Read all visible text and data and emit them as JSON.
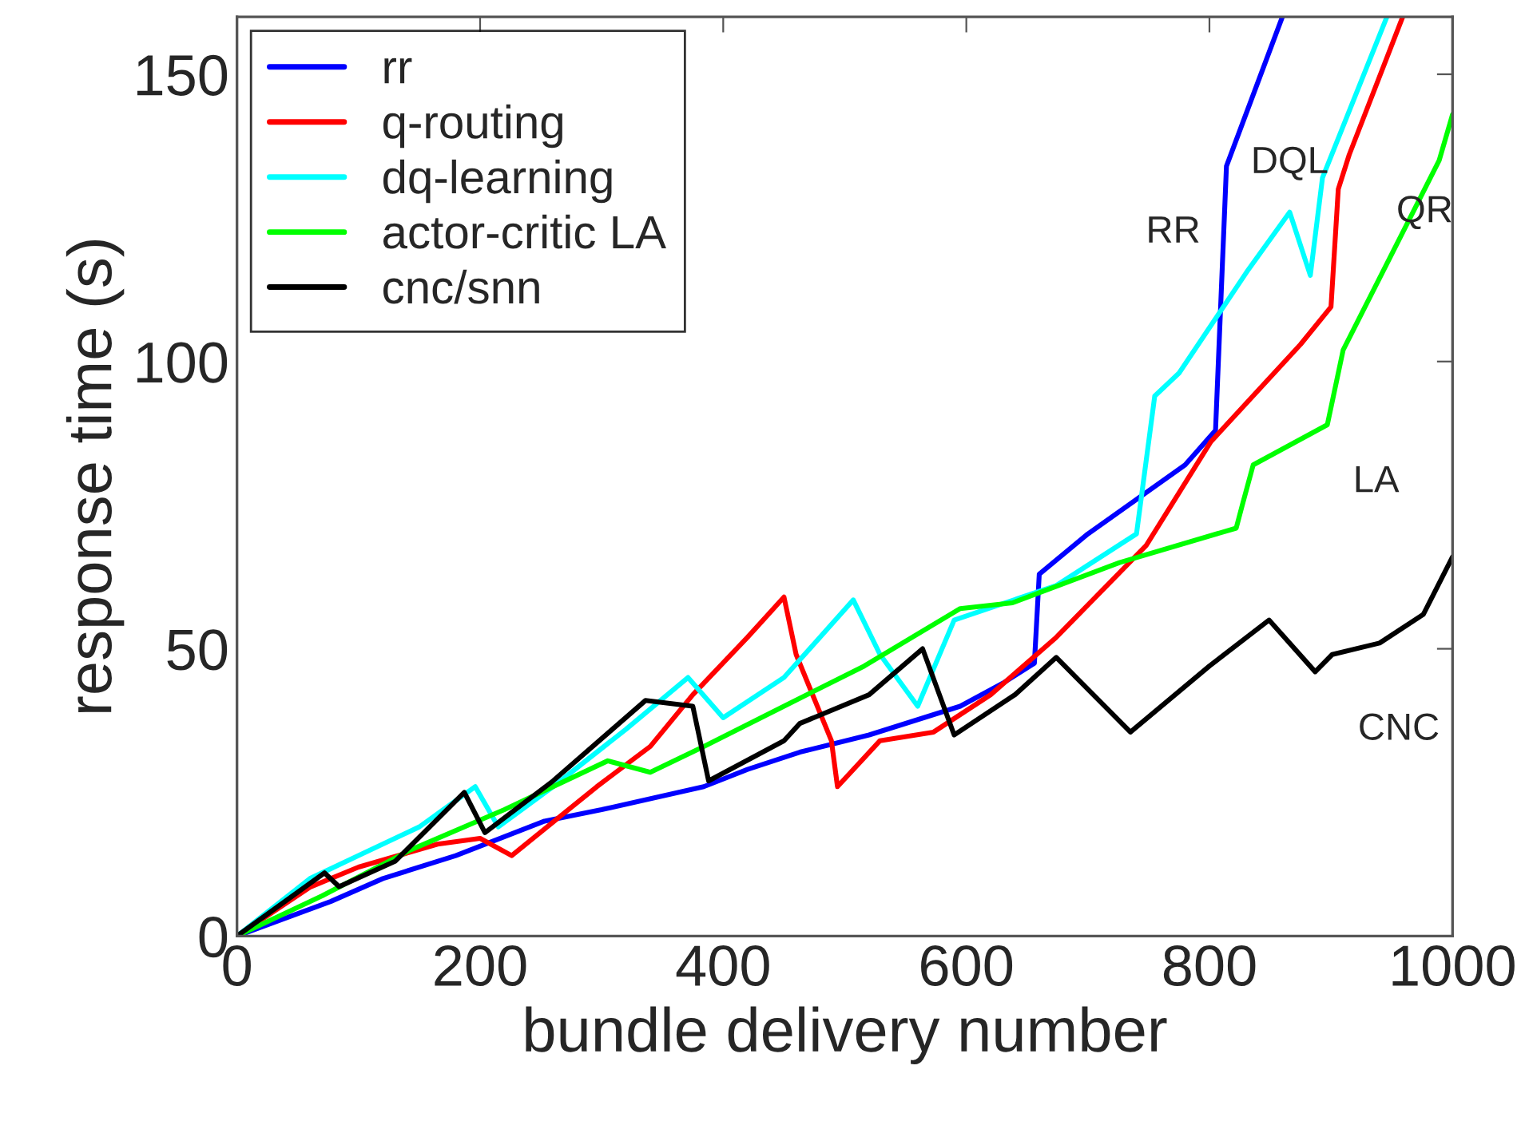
{
  "chart_data": {
    "type": "line",
    "xlabel": "bundle delivery number",
    "ylabel": "response time (s)",
    "xlim": [
      0,
      1000
    ],
    "ylim": [
      0,
      160
    ],
    "xticks": [
      0,
      200,
      400,
      600,
      800,
      1000
    ],
    "yticks": [
      0,
      50,
      100,
      150
    ],
    "grid": false,
    "legend": "top left",
    "line_style": "solid",
    "marker": "none",
    "series": [
      {
        "name": "rr",
        "color": "#0000ff",
        "x": [
          0,
          77,
          120,
          180,
          253,
          300,
          384,
          420,
          463,
          520,
          595,
          630,
          656,
          660,
          700,
          740,
          780,
          805,
          814,
          860
        ],
        "values": [
          0,
          6,
          10,
          14,
          20,
          22,
          26,
          29,
          32,
          35,
          40,
          44,
          47.5,
          63,
          70,
          76,
          82,
          88,
          134,
          160
        ]
      },
      {
        "name": "q-routing",
        "color": "#ff0000",
        "x": [
          0,
          60,
          100,
          165,
          200,
          226,
          296,
          340,
          375,
          420,
          450,
          460,
          489,
          494,
          529,
          573,
          620,
          674,
          748,
          801,
          875,
          900,
          906,
          915,
          959
        ],
        "values": [
          0,
          8.5,
          12,
          16,
          17,
          14,
          26,
          33,
          42,
          52,
          59,
          49,
          34,
          26,
          34,
          35.5,
          42,
          52,
          68,
          86,
          103,
          109.5,
          130,
          136,
          160
        ]
      },
      {
        "name": "dq-learning",
        "color": "#00ffff",
        "x": [
          0,
          60,
          100,
          150,
          196,
          215,
          260,
          320,
          371,
          400,
          450,
          507,
          529,
          560,
          590,
          674,
          740,
          755,
          775,
          832,
          866,
          883,
          893,
          946
        ],
        "values": [
          0,
          10,
          14,
          19,
          26,
          19,
          26,
          36,
          45,
          38,
          45,
          58.5,
          49,
          40,
          55,
          61,
          70,
          94,
          98,
          116,
          126,
          115,
          132,
          160
        ]
      },
      {
        "name": "actor-critic LA",
        "color": "#00ff00",
        "x": [
          0,
          70,
          143,
          220,
          305,
          340,
          384,
          450,
          516,
          595,
          638,
          726,
          822,
          827,
          836,
          897,
          910,
          989,
          1000
        ],
        "values": [
          0,
          7,
          15,
          22,
          30.5,
          28.5,
          33,
          40,
          47,
          57,
          58,
          65,
          71,
          75,
          82,
          89,
          102,
          135,
          143
        ]
      },
      {
        "name": "cnc/snn",
        "color": "#000000",
        "x": [
          0,
          72,
          84,
          130,
          187,
          204,
          260,
          336,
          375,
          388,
          450,
          463,
          520,
          564,
          590,
          640,
          674,
          735,
          800,
          849,
          887,
          901,
          940,
          976,
          1000
        ],
        "values": [
          0,
          11,
          8.6,
          13,
          25,
          18,
          27,
          41,
          40,
          27,
          34,
          37,
          42,
          50,
          35,
          42,
          48.5,
          35.5,
          47,
          55,
          46,
          49,
          51,
          56,
          66
        ]
      }
    ],
    "annotations": [
      {
        "text": "RR",
        "x": 814,
        "y": 134
      },
      {
        "text": "DQL",
        "x": 866,
        "y": 126
      },
      {
        "text": "QR",
        "x": 915,
        "y": 136
      },
      {
        "text": "LA",
        "x": 897,
        "y": 89
      },
      {
        "text": "CNC",
        "x": 901,
        "y": 49
      }
    ]
  }
}
